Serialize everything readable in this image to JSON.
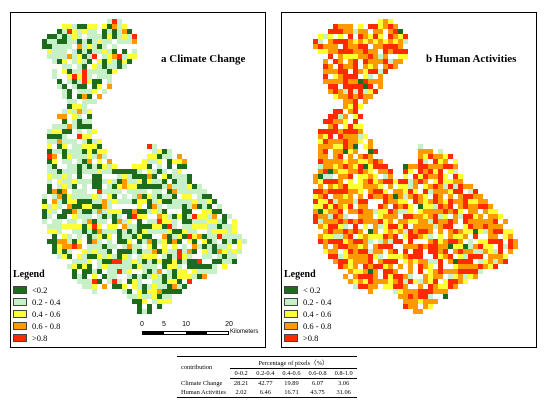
{
  "panels": [
    {
      "id": "a",
      "title": "a Climate Change",
      "palette": "climate"
    },
    {
      "id": "b",
      "title": "b Human Activities",
      "palette": "human"
    }
  ],
  "legend": {
    "title": "Legend",
    "items_a": [
      "<0.2",
      "0.2 - 0.4",
      "0.4 - 0.6",
      "0.6 - 0.8",
      ">0.8"
    ],
    "items_b": [
      "< 0.2",
      "0.2 - 0.4",
      "0.4 - 0.6",
      "0.6 - 0.8",
      ">0.8"
    ],
    "colors": [
      "#1d6b1d",
      "#c8f0c8",
      "#ffff33",
      "#ff9900",
      "#ff2a00"
    ]
  },
  "scalebar": {
    "ticks": [
      "0",
      "5",
      "10",
      "20"
    ],
    "unit": "Kilometers"
  },
  "table": {
    "row_header": "contribution",
    "group_header": "Percentage of pixels（%）",
    "columns": [
      "0-0.2",
      "0.2-0.4",
      "0.4-0.6",
      "0.6-0.8",
      "0.8-1.0"
    ],
    "rows": [
      {
        "label": "Climate Change",
        "values": [
          "28.21",
          "42.77",
          "19.89",
          "6.07",
          "3.06"
        ]
      },
      {
        "label": "Human Activities",
        "values": [
          "2.02",
          "6.46",
          "16.71",
          "43.75",
          "31.06"
        ]
      }
    ]
  }
}
